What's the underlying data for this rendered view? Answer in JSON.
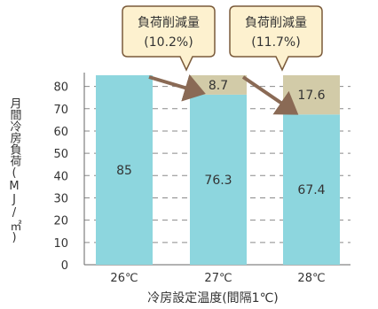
{
  "chart_data": {
    "type": "bar",
    "xlabel": "冷房設定温度(間隔1℃)",
    "ylabel": "月間冷房負荷(MJ/㎡)",
    "ylim": [
      0,
      85
    ],
    "yticks": [
      0,
      10,
      20,
      30,
      40,
      50,
      60,
      70,
      80
    ],
    "categories": [
      "26℃",
      "27℃",
      "28℃"
    ],
    "series": [
      {
        "values": [
          85,
          76.3,
          67.4
        ],
        "labels": [
          "85",
          "76.3",
          "67.4"
        ],
        "color": "#8dd6de"
      },
      {
        "values": [
          0,
          8.7,
          17.6
        ],
        "labels": [
          "",
          "8.7",
          "17.6"
        ],
        "color": "#d2cba8"
      }
    ],
    "callouts": [
      {
        "line1": "負荷削減量",
        "line2": "(10.2%)"
      },
      {
        "line1": "負荷削減量",
        "line2": "(11.7%)"
      }
    ],
    "grid": true,
    "colors": {
      "callout_fill": "#fdf1cf",
      "callout_border": "#7a5a3a",
      "arrow": "#8a6a55",
      "grid": "#8a8a8a"
    }
  }
}
